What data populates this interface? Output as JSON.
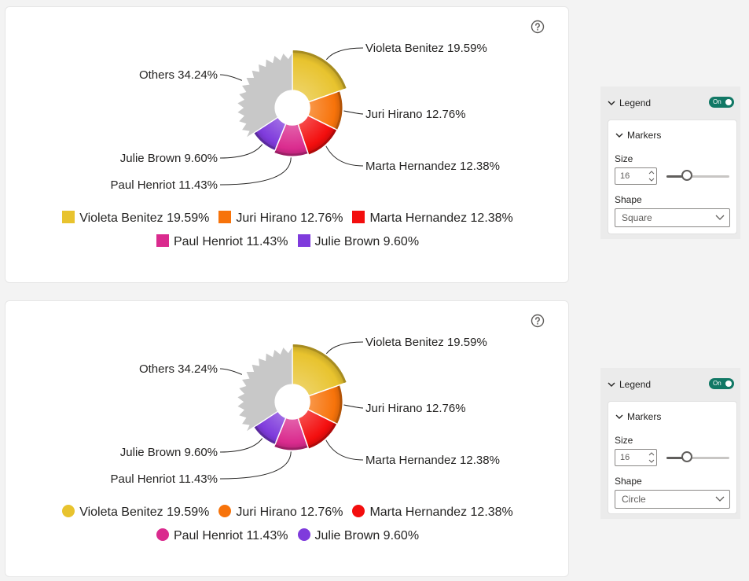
{
  "chart_data": [
    {
      "type": "pie",
      "variant": "donut-radial",
      "slices": [
        {
          "label": "Violeta Benitez",
          "value": 19.59,
          "display": "Violeta Benitez 19.59%",
          "color": "#E8C32E"
        },
        {
          "label": "Juri Hirano",
          "value": 12.76,
          "display": "Juri Hirano 12.76%",
          "color": "#F7730A"
        },
        {
          "label": "Marta Hernandez",
          "value": 12.38,
          "display": "Marta Hernandez 12.38%",
          "color": "#F30E0E"
        },
        {
          "label": "Paul Henriot",
          "value": 11.43,
          "display": "Paul Henriot 11.43%",
          "color": "#DA2B8E"
        },
        {
          "label": "Julie Brown",
          "value": 9.6,
          "display": "Julie Brown 9.60%",
          "color": "#7F3BDC"
        },
        {
          "label": "Others",
          "value": 34.24,
          "display": "Others 34.24%",
          "color": "#C8C8C8"
        }
      ],
      "legend": {
        "marker_shape": "square",
        "placement": "bottom"
      }
    },
    {
      "type": "pie",
      "variant": "donut-radial",
      "slices": [
        {
          "label": "Violeta Benitez",
          "value": 19.59,
          "display": "Violeta Benitez 19.59%",
          "color": "#E8C32E"
        },
        {
          "label": "Juri Hirano",
          "value": 12.76,
          "display": "Juri Hirano 12.76%",
          "color": "#F7730A"
        },
        {
          "label": "Marta Hernandez",
          "value": 12.38,
          "display": "Marta Hernandez 12.38%",
          "color": "#F30E0E"
        },
        {
          "label": "Paul Henriot",
          "value": 11.43,
          "display": "Paul Henriot 11.43%",
          "color": "#DA2B8E"
        },
        {
          "label": "Julie Brown",
          "value": 9.6,
          "display": "Julie Brown 9.60%",
          "color": "#7F3BDC"
        },
        {
          "label": "Others",
          "value": 34.24,
          "display": "Others 34.24%",
          "color": "#C8C8C8"
        }
      ],
      "legend": {
        "marker_shape": "circle",
        "placement": "bottom"
      }
    }
  ],
  "panels": [
    {
      "section_label": "Legend",
      "toggle_label": "On",
      "subsection_label": "Markers",
      "size_label": "Size",
      "size_value": "16",
      "slider_level": 0.33,
      "shape_label": "Shape",
      "shape_value": "Square"
    },
    {
      "section_label": "Legend",
      "toggle_label": "On",
      "subsection_label": "Markers",
      "size_label": "Size",
      "size_value": "16",
      "slider_level": 0.33,
      "shape_label": "Shape",
      "shape_value": "Circle"
    }
  ],
  "icons": {
    "help": "help-circle-icon",
    "chevron": "chevron-down-icon"
  },
  "colors": {
    "toggle_on": "#117865"
  }
}
